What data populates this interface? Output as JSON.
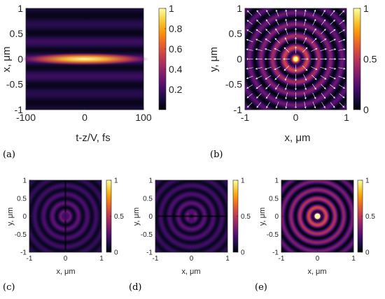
{
  "figure": {
    "colormap": "inferno",
    "colormap_stops": [
      "#000004",
      "#1b0c41",
      "#4a0c6b",
      "#781c6d",
      "#a52c60",
      "#cf4446",
      "#ed6925",
      "#fb9b06",
      "#f7d13d",
      "#fcffa4"
    ]
  },
  "chart_data": [
    {
      "panel": "a",
      "caption": "(a)",
      "type": "heatmap",
      "description_visible": "horizontal stripes, bright elongated band at x=0",
      "xlabel": "t-z/V, fs",
      "ylabel": "x, μm",
      "xlim": [
        -100,
        100
      ],
      "ylim": [
        -1,
        1
      ],
      "xticks": [
        "-100",
        "0",
        "100"
      ],
      "yticks": [
        "1",
        "0.5",
        "0",
        "-0.5",
        "-1"
      ],
      "colorbar": {
        "range": [
          0,
          1
        ],
        "ticks": [
          "1",
          "0.8",
          "0.6",
          "0.4",
          "0.2"
        ]
      },
      "ridges_x_um": [
        0.0,
        0.16,
        0.34,
        0.52,
        0.69,
        0.87
      ],
      "peak": 1.0
    },
    {
      "panel": "b",
      "caption": "(b)",
      "type": "heatmap",
      "description_visible": "concentric rings with bright center, overlaid radial white arrows",
      "xlabel": "x, μm",
      "ylabel": "y, μm",
      "xlim": [
        -1,
        1
      ],
      "ylim": [
        -1,
        1
      ],
      "xticks": [
        "-1",
        "0",
        "1"
      ],
      "yticks": [
        "1",
        "0.5",
        "0",
        "-0.5",
        "-1"
      ],
      "colorbar": {
        "range": [
          0,
          1
        ],
        "ticks": [
          "1",
          "0.5",
          "0"
        ]
      },
      "overlay": "radial vector field"
    },
    {
      "panel": "c",
      "caption": "(c)",
      "type": "heatmap",
      "description_visible": "faint concentric rings, dark center and dark vertical line",
      "xlabel": "x, μm",
      "ylabel": "y, μm",
      "xlim": [
        -1,
        1
      ],
      "ylim": [
        -1,
        1
      ],
      "xticks": [
        "-1",
        "0",
        "1"
      ],
      "yticks": [
        "1",
        "0.5",
        "0",
        "-0.5",
        "-1"
      ],
      "colorbar": {
        "range": [
          0,
          1
        ],
        "ticks": [
          "1",
          "0.5",
          "0"
        ]
      }
    },
    {
      "panel": "d",
      "caption": "(d)",
      "type": "heatmap",
      "description_visible": "faint concentric rings, dark horizontal line",
      "xlabel": "x, μm",
      "ylabel": "y, μm",
      "xlim": [
        -1,
        1
      ],
      "ylim": [
        -1,
        1
      ],
      "xticks": [
        "-1",
        "0",
        "1"
      ],
      "yticks": [
        "1",
        "0.5",
        "0",
        "-0.5",
        "-1"
      ],
      "colorbar": {
        "range": [
          0,
          1
        ],
        "ticks": [
          "1",
          "0.5",
          "0"
        ]
      }
    },
    {
      "panel": "e",
      "caption": "(e)",
      "type": "heatmap",
      "description_visible": "bright concentric rings with intense center spot",
      "xlabel": "x, μm",
      "ylabel": "y, μm",
      "xlim": [
        -1,
        1
      ],
      "ylim": [
        -1,
        1
      ],
      "xticks": [
        "-1",
        "0",
        "1"
      ],
      "yticks": [
        "1",
        "0.5",
        "0",
        "-0.5",
        "-1"
      ],
      "colorbar": {
        "range": [
          0,
          1
        ],
        "ticks": [
          "1",
          "0.5",
          "0"
        ]
      }
    }
  ]
}
